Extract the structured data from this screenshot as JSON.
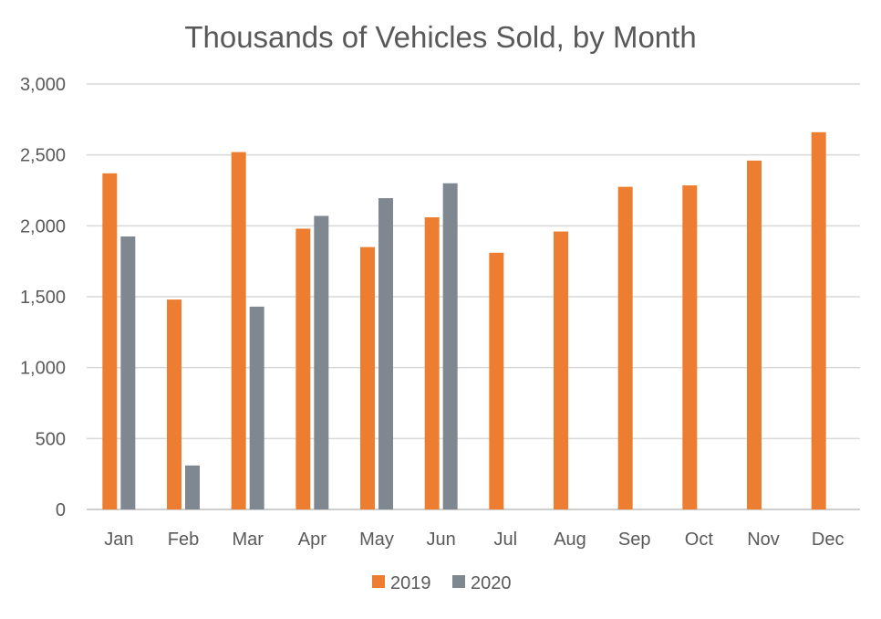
{
  "chart_data": {
    "type": "bar",
    "title": "Thousands of Vehicles Sold, by Month",
    "xlabel": "",
    "ylabel": "",
    "categories": [
      "Jan",
      "Feb",
      "Mar",
      "Apr",
      "May",
      "Jun",
      "Jul",
      "Aug",
      "Sep",
      "Oct",
      "Nov",
      "Dec"
    ],
    "series": [
      {
        "name": "2019",
        "color": "#ED7D31",
        "values": [
          2370,
          1480,
          2520,
          1980,
          1850,
          2060,
          1810,
          1960,
          2275,
          2285,
          2460,
          2660
        ]
      },
      {
        "name": "2020",
        "color": "#7F8891",
        "values": [
          1925,
          310,
          1430,
          2070,
          2195,
          2300,
          null,
          null,
          null,
          null,
          null,
          null
        ]
      }
    ],
    "ylim": [
      0,
      3000
    ],
    "yticks": [
      0,
      500,
      1000,
      1500,
      2000,
      2500,
      3000
    ],
    "ytick_labels": [
      "0",
      "500",
      "1,000",
      "1,500",
      "2,000",
      "2,500",
      "3,000"
    ],
    "grid": true,
    "legend_position": "bottom"
  }
}
